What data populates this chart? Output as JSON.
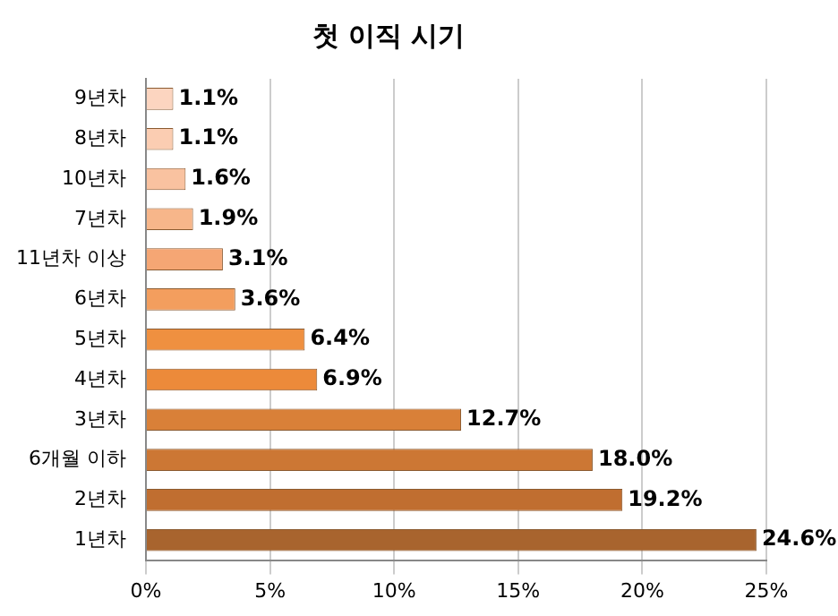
{
  "chart_data": {
    "type": "bar",
    "orientation": "horizontal",
    "title": "첫 이직 시기",
    "categories": [
      "9년차",
      "8년차",
      "10년차",
      "7년차",
      "11년차 이상",
      "6년차",
      "5년차",
      "4년차",
      "3년차",
      "6개월 이하",
      "2년차",
      "1년차"
    ],
    "values": [
      1.1,
      1.1,
      1.6,
      1.9,
      3.1,
      3.6,
      6.4,
      6.9,
      12.7,
      18.0,
      19.2,
      24.6
    ],
    "value_labels": [
      "1.1%",
      "1.1%",
      "1.6%",
      "1.9%",
      "3.1%",
      "3.6%",
      "6.4%",
      "6.9%",
      "12.7%",
      "18.0%",
      "19.2%",
      "24.6%"
    ],
    "colors": [
      "#fcd5c0",
      "#fbcdb2",
      "#f9c2a0",
      "#f7b68a",
      "#f5a674",
      "#f39e5e",
      "#ef9040",
      "#ec8a3a",
      "#d98038",
      "#cc7734",
      "#c06e30",
      "#a8642e"
    ],
    "xlim": [
      0,
      25
    ],
    "xticks": [
      {
        "value": 0,
        "label": "0%"
      },
      {
        "value": 5,
        "label": "5%"
      },
      {
        "value": 10,
        "label": "10%"
      },
      {
        "value": 15,
        "label": "15%"
      },
      {
        "value": 20,
        "label": "20%"
      },
      {
        "value": 25,
        "label": "25%"
      }
    ],
    "grid": "x",
    "legend": false
  }
}
